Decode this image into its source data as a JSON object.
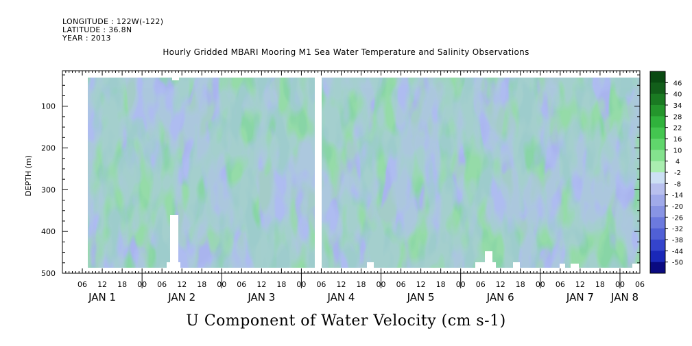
{
  "header": {
    "longitude": "LONGITUDE : 122W(-122)",
    "latitude": "LATITUDE : 36.8N",
    "year": "YEAR : 2013"
  },
  "chart_data": {
    "type": "heatmap",
    "title": "Hourly Gridded MBARI Mooring M1 Sea Water Temperature and Salinity Observations",
    "xlabel": "U Component of Water Velocity (cm s-1)",
    "ylabel": "DEPTH (m)",
    "ylim": [
      500,
      0
    ],
    "y_ticks": [
      100,
      200,
      300,
      400,
      500
    ],
    "x_range_hours": [
      "JAN 1 00",
      "JAN 8 06"
    ],
    "x_hour_ticks": [
      "06",
      "12",
      "18",
      "00",
      "06",
      "12",
      "18",
      "00",
      "06",
      "12",
      "18",
      "00",
      "06",
      "12",
      "18",
      "00",
      "06",
      "12",
      "18",
      "00",
      "06",
      "12",
      "18",
      "00",
      "06",
      "12",
      "18",
      "00",
      "06"
    ],
    "x_day_labels": [
      "JAN  1",
      "JAN  2",
      "JAN  3",
      "JAN  4",
      "JAN  5",
      "JAN  6",
      "JAN  7",
      "JAN  8"
    ],
    "colorbar_levels": [
      "46",
      "40",
      "34",
      "28",
      "22",
      "16",
      "10",
      "4",
      "-2",
      "-8",
      "-14",
      "-20",
      "-26",
      "-32",
      "-38",
      "-44",
      "-50"
    ],
    "colors": {
      "positive_light": "#c0f0c0",
      "positive_mid": "#80e090",
      "positive_dark": "#1a6e28",
      "negative_light": "#b8c0f0",
      "negative_mid": "#8090e8",
      "negative_dark": "#0a0a80"
    },
    "data_gaps": [
      "JAN 4 ~00-01 (all depths)"
    ]
  }
}
